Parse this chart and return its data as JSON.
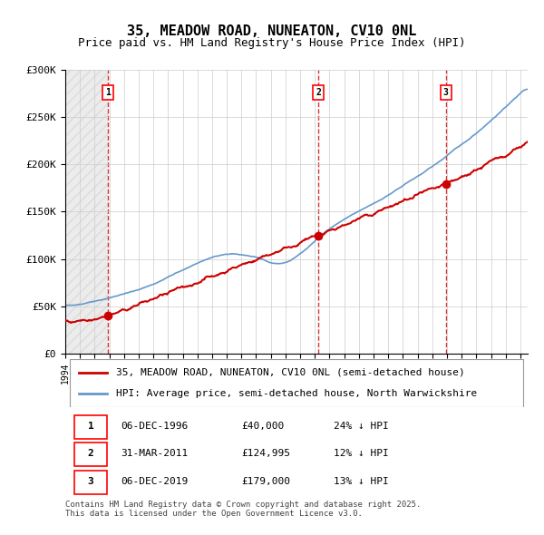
{
  "title": "35, MEADOW ROAD, NUNEATON, CV10 0NL",
  "subtitle": "Price paid vs. HM Land Registry's House Price Index (HPI)",
  "ylabel": "",
  "ylim": [
    0,
    300000
  ],
  "yticks": [
    0,
    50000,
    100000,
    150000,
    200000,
    250000,
    300000
  ],
  "ytick_labels": [
    "£0",
    "£50K",
    "£100K",
    "£150K",
    "£200K",
    "£250K",
    "£300K"
  ],
  "xlim_start": 1994.0,
  "xlim_end": 2025.5,
  "sale_dates": [
    1996.92,
    2011.25,
    2019.92
  ],
  "sale_prices": [
    40000,
    124995,
    179000
  ],
  "sale_labels": [
    "1",
    "2",
    "3"
  ],
  "hpi_color": "#6699cc",
  "sale_color": "#cc0000",
  "sale_dot_color": "#cc0000",
  "dashed_line_color": "#cc0000",
  "background_hatch_color": "#e8e8e8",
  "grid_color": "#cccccc",
  "legend_line1": "35, MEADOW ROAD, NUNEATON, CV10 0NL (semi-detached house)",
  "legend_line2": "HPI: Average price, semi-detached house, North Warwickshire",
  "table_rows": [
    [
      "1",
      "06-DEC-1996",
      "£40,000",
      "24% ↓ HPI"
    ],
    [
      "2",
      "31-MAR-2011",
      "£124,995",
      "12% ↓ HPI"
    ],
    [
      "3",
      "06-DEC-2019",
      "£179,000",
      "13% ↓ HPI"
    ]
  ],
  "footnote": "Contains HM Land Registry data © Crown copyright and database right 2025.\nThis data is licensed under the Open Government Licence v3.0.",
  "title_fontsize": 11,
  "subtitle_fontsize": 9,
  "tick_fontsize": 8,
  "legend_fontsize": 8,
  "table_fontsize": 8,
  "footnote_fontsize": 6.5
}
